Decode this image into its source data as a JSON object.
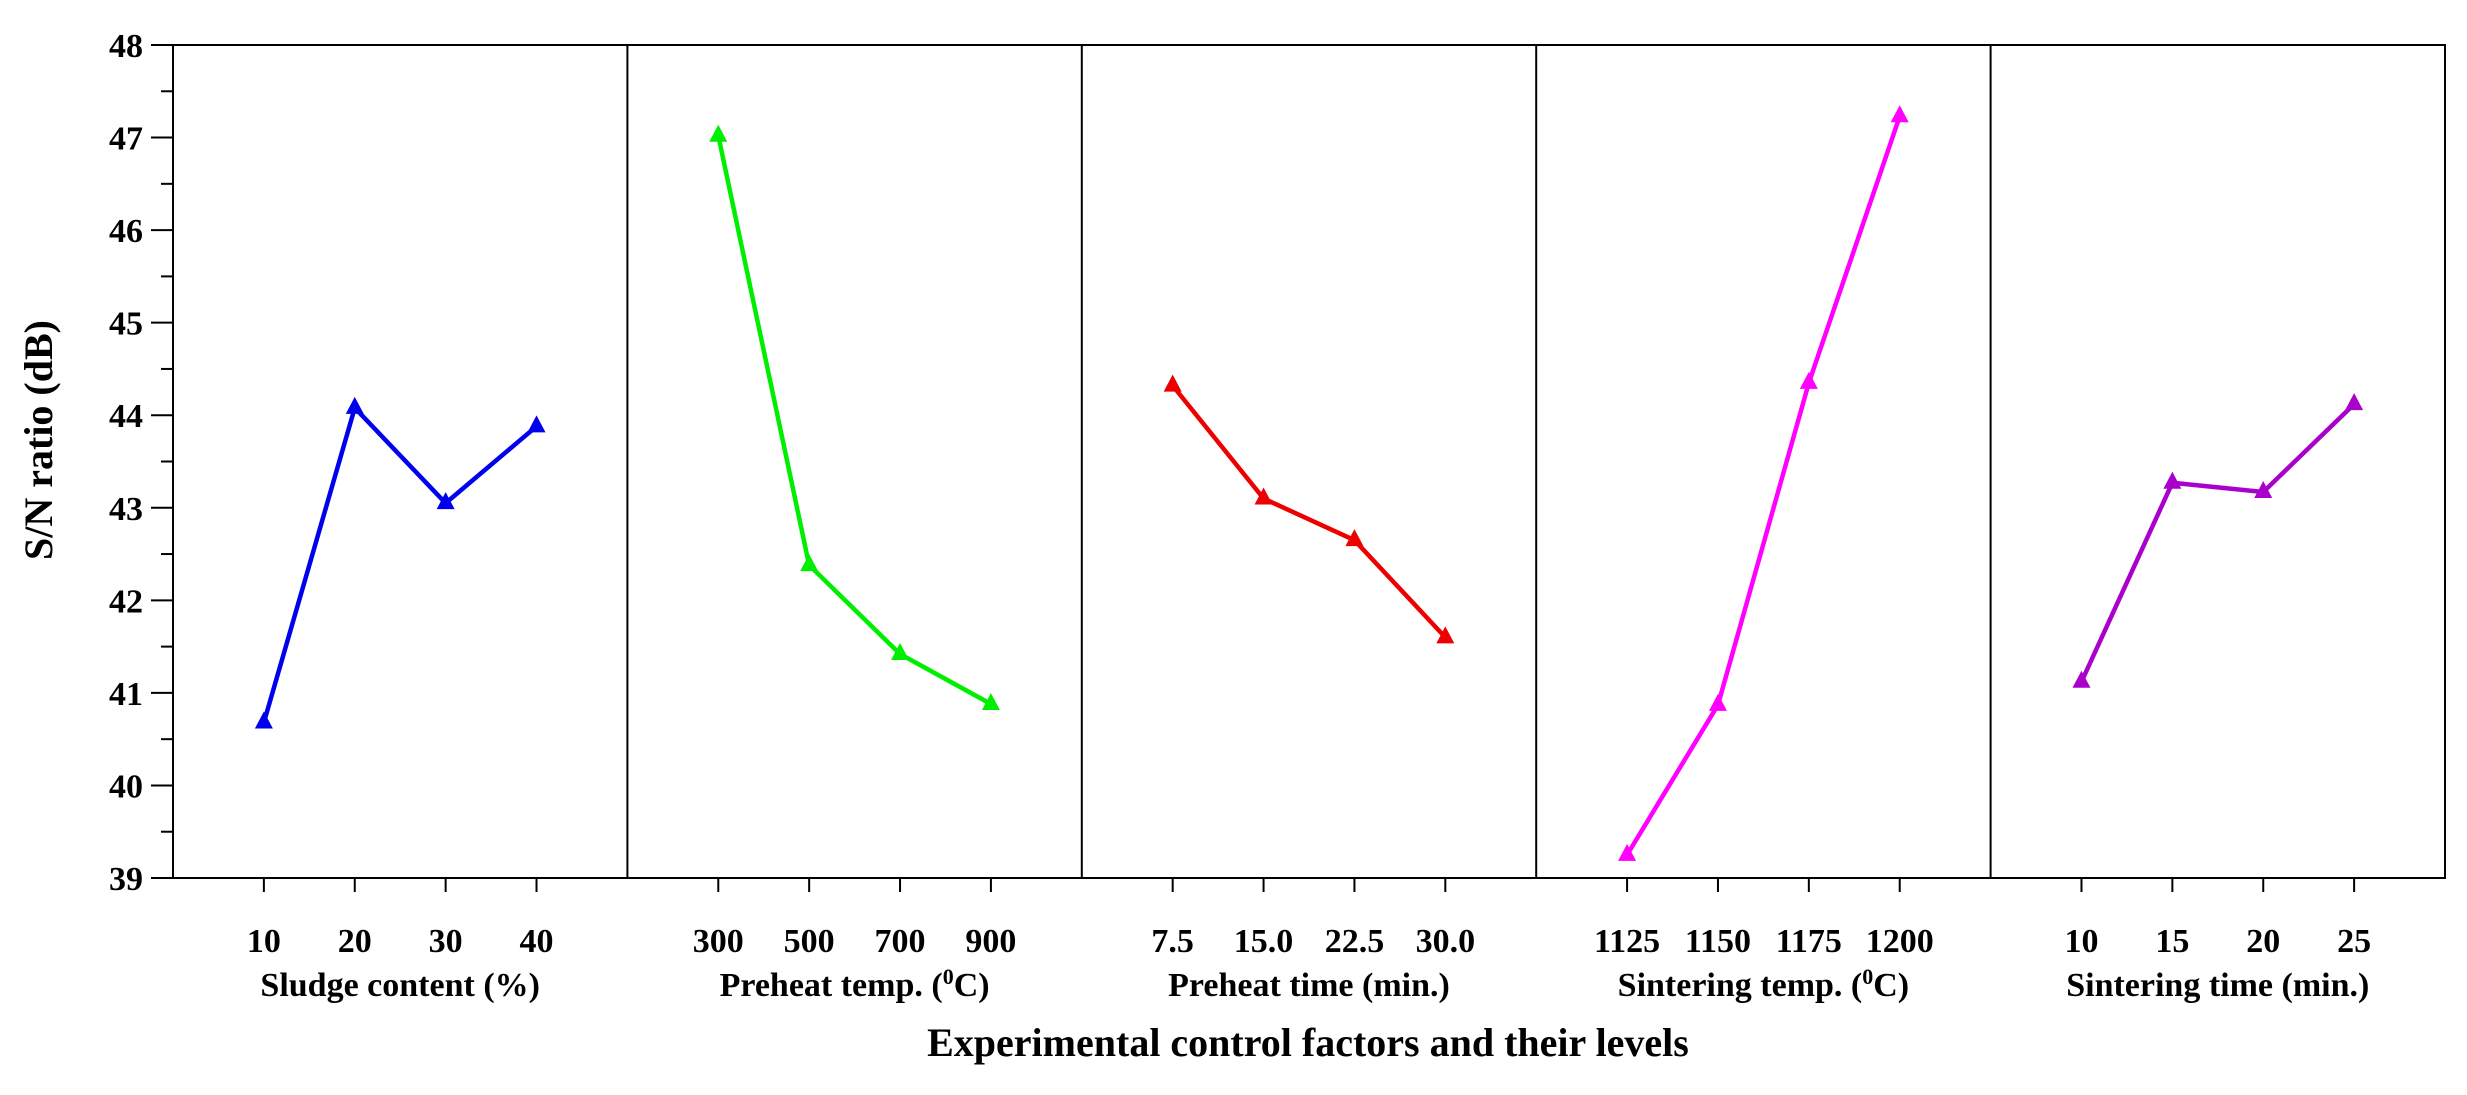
{
  "chart_data": {
    "type": "line",
    "ylabel": "S/N ratio (dB)",
    "xlabel": "Experimental control factors and their levels",
    "ylim": [
      39,
      48
    ],
    "yticks": [
      "39",
      "40",
      "41",
      "42",
      "43",
      "44",
      "45",
      "46",
      "47",
      "48"
    ],
    "panels": [
      {
        "name": "Sludge content (%)",
        "categories": [
          "10",
          "20",
          "30",
          "40"
        ],
        "values": [
          40.68,
          44.08,
          43.05,
          43.88
        ],
        "color": "#0000ee"
      },
      {
        "name": "Preheat temp. (",
        "name_sup": "0",
        "name_suffix": "C)",
        "categories": [
          "300",
          "500",
          "700",
          "900"
        ],
        "values": [
          47.02,
          42.38,
          41.42,
          40.88
        ],
        "color": "#00ee00"
      },
      {
        "name": "Preheat time (min.)",
        "categories": [
          "7.5",
          "15.0",
          "22.5",
          "30.0"
        ],
        "values": [
          44.32,
          43.1,
          42.65,
          41.6
        ],
        "color": "#ee0000"
      },
      {
        "name": "Sintering temp. (",
        "name_sup": "0",
        "name_suffix": "C)",
        "categories": [
          "1125",
          "1150",
          "1175",
          "1200"
        ],
        "values": [
          39.25,
          40.87,
          44.35,
          47.23
        ],
        "color": "#ff00ff"
      },
      {
        "name": "Sintering time (min.)",
        "categories": [
          "10",
          "15",
          "20",
          "25"
        ],
        "values": [
          41.12,
          43.27,
          43.17,
          44.12
        ],
        "color": "#aa00cc"
      }
    ]
  }
}
